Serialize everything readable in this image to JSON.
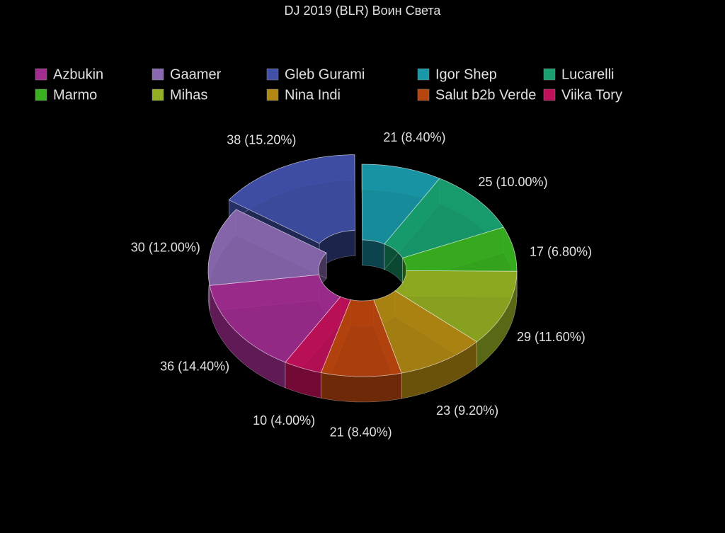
{
  "chart_data": {
    "type": "donut",
    "title": "DJ 2019 (BLR) Воин Света",
    "categories": [
      "Azbukin",
      "Gaamer",
      "Gleb Gurami",
      "Igor Shep",
      "Lucarelli",
      "Marmo",
      "Mihas",
      "Nina Indi",
      "Salut b2b Verde",
      "Viika Tory"
    ],
    "values": [
      36,
      30,
      38,
      21,
      25,
      17,
      29,
      23,
      21,
      10
    ],
    "value_labels": [
      "36 (14.40%)",
      "30 (12.00%)",
      "38 (15.20%)",
      "21 (8.40%)",
      "25 (10.00%)",
      "17 (6.80%)",
      "29 (11.60%)",
      "23 (9.20%)",
      "21 (8.40%)",
      "10 (4.00%)"
    ],
    "colors": [
      "#a02c90",
      "#8a68b0",
      "#4050a8",
      "#1898a8",
      "#18a070",
      "#38b020",
      "#92ae22",
      "#b08812",
      "#b8440e",
      "#c0105a"
    ],
    "legend": "top"
  }
}
